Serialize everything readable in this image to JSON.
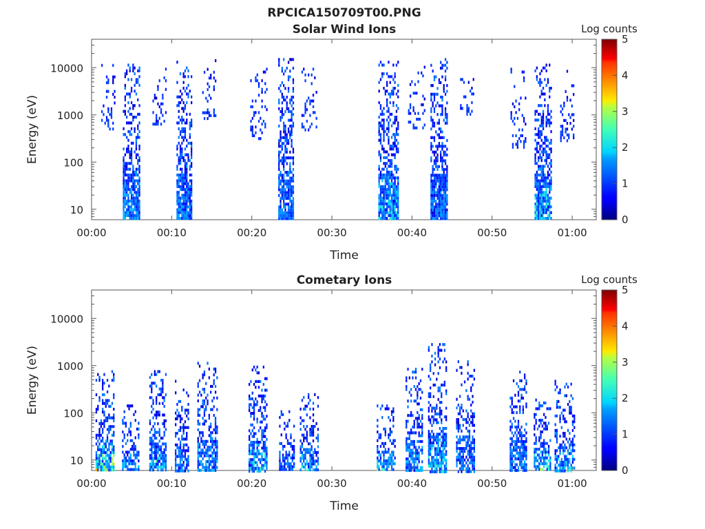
{
  "page_title": "RPCICA150709T00.PNG",
  "colorbar": {
    "label": "Log counts",
    "ticks": [
      "0",
      "1",
      "2",
      "3",
      "4",
      "5"
    ],
    "range": [
      0,
      5
    ],
    "colormap": "jet"
  },
  "chart_data": [
    {
      "type": "heatmap",
      "title": "Solar Wind Ions",
      "xlabel": "Time",
      "ylabel": "Energy (eV)",
      "x_ticks": [
        "00:00",
        "00:10",
        "00:20",
        "00:30",
        "00:40",
        "00:50",
        "01:00"
      ],
      "y_ticks": [
        "10",
        "100",
        "1000",
        "10000"
      ],
      "x_range_min": [
        0,
        63
      ],
      "y_range_ev": [
        6,
        40000
      ],
      "y_scale": "log",
      "bursts": [
        {
          "t": [
            1.2,
            2.8
          ],
          "e": [
            500,
            12000
          ],
          "density": 0.25,
          "peak": 1.0
        },
        {
          "t": [
            3.9,
            6.0
          ],
          "e": [
            6,
            14000
          ],
          "density": 0.55,
          "peak": 1.8
        },
        {
          "t": [
            7.6,
            9.2
          ],
          "e": [
            600,
            10000
          ],
          "density": 0.22,
          "peak": 1.0
        },
        {
          "t": [
            10.6,
            12.4
          ],
          "e": [
            6,
            14000
          ],
          "density": 0.55,
          "peak": 1.7
        },
        {
          "t": [
            13.8,
            15.5
          ],
          "e": [
            800,
            20000
          ],
          "density": 0.2,
          "peak": 1.0
        },
        {
          "t": [
            19.8,
            21.8
          ],
          "e": [
            300,
            10000
          ],
          "density": 0.22,
          "peak": 1.0
        },
        {
          "t": [
            23.3,
            25.2
          ],
          "e": [
            6,
            16000
          ],
          "density": 0.55,
          "peak": 1.6
        },
        {
          "t": [
            26.2,
            28.0
          ],
          "e": [
            500,
            10000
          ],
          "density": 0.22,
          "peak": 1.0
        },
        {
          "t": [
            35.8,
            38.2
          ],
          "e": [
            6,
            14000
          ],
          "density": 0.55,
          "peak": 2.2
        },
        {
          "t": [
            39.5,
            41.5
          ],
          "e": [
            500,
            11000
          ],
          "density": 0.22,
          "peak": 1.0
        },
        {
          "t": [
            42.3,
            44.4
          ],
          "e": [
            6,
            16000
          ],
          "density": 0.55,
          "peak": 1.6
        },
        {
          "t": [
            46.0,
            47.6
          ],
          "e": [
            1000,
            8000
          ],
          "density": 0.22,
          "peak": 1.0
        },
        {
          "t": [
            52.3,
            54.2
          ],
          "e": [
            200,
            10000
          ],
          "density": 0.22,
          "peak": 1.0
        },
        {
          "t": [
            55.3,
            57.3
          ],
          "e": [
            6,
            14000
          ],
          "density": 0.55,
          "peak": 2.5
        },
        {
          "t": [
            58.5,
            60.2
          ],
          "e": [
            300,
            9000
          ],
          "density": 0.22,
          "peak": 1.0
        }
      ]
    },
    {
      "type": "heatmap",
      "title": "Cometary Ions",
      "xlabel": "Time",
      "ylabel": "Energy (eV)",
      "x_ticks": [
        "00:00",
        "00:10",
        "00:20",
        "00:30",
        "00:40",
        "00:50",
        "01:00"
      ],
      "y_ticks": [
        "10",
        "100",
        "1000",
        "10000"
      ],
      "x_range_min": [
        0,
        63
      ],
      "y_range_ev": [
        6,
        40000
      ],
      "y_scale": "log",
      "bursts": [
        {
          "t": [
            0.5,
            2.8
          ],
          "e": [
            6,
            800
          ],
          "density": 0.5,
          "peak": 4.0
        },
        {
          "t": [
            3.8,
            5.8
          ],
          "e": [
            6,
            150
          ],
          "density": 0.4,
          "peak": 1.8
        },
        {
          "t": [
            7.2,
            9.2
          ],
          "e": [
            6,
            800
          ],
          "density": 0.5,
          "peak": 2.6
        },
        {
          "t": [
            10.4,
            12.0
          ],
          "e": [
            6,
            500
          ],
          "density": 0.35,
          "peak": 1.6
        },
        {
          "t": [
            13.2,
            15.6
          ],
          "e": [
            6,
            1200
          ],
          "density": 0.45,
          "peak": 1.8
        },
        {
          "t": [
            19.6,
            21.9
          ],
          "e": [
            6,
            1000
          ],
          "density": 0.45,
          "peak": 2.3
        },
        {
          "t": [
            23.4,
            25.2
          ],
          "e": [
            6,
            150
          ],
          "density": 0.35,
          "peak": 1.5
        },
        {
          "t": [
            26.0,
            28.2
          ],
          "e": [
            6,
            300
          ],
          "density": 0.4,
          "peak": 2.2
        },
        {
          "t": [
            35.6,
            37.8
          ],
          "e": [
            6,
            150
          ],
          "density": 0.45,
          "peak": 2.8
        },
        {
          "t": [
            39.2,
            41.2
          ],
          "e": [
            6,
            900
          ],
          "density": 0.4,
          "peak": 1.8
        },
        {
          "t": [
            42.0,
            44.2
          ],
          "e": [
            6,
            3000
          ],
          "density": 0.45,
          "peak": 2.3
        },
        {
          "t": [
            45.5,
            47.8
          ],
          "e": [
            6,
            1300
          ],
          "density": 0.4,
          "peak": 1.6
        },
        {
          "t": [
            52.2,
            54.2
          ],
          "e": [
            6,
            900
          ],
          "density": 0.45,
          "peak": 1.8
        },
        {
          "t": [
            55.2,
            57.2
          ],
          "e": [
            6,
            200
          ],
          "density": 0.45,
          "peak": 3.6
        },
        {
          "t": [
            57.8,
            60.3
          ],
          "e": [
            6,
            500
          ],
          "density": 0.4,
          "peak": 2.2
        }
      ]
    }
  ]
}
